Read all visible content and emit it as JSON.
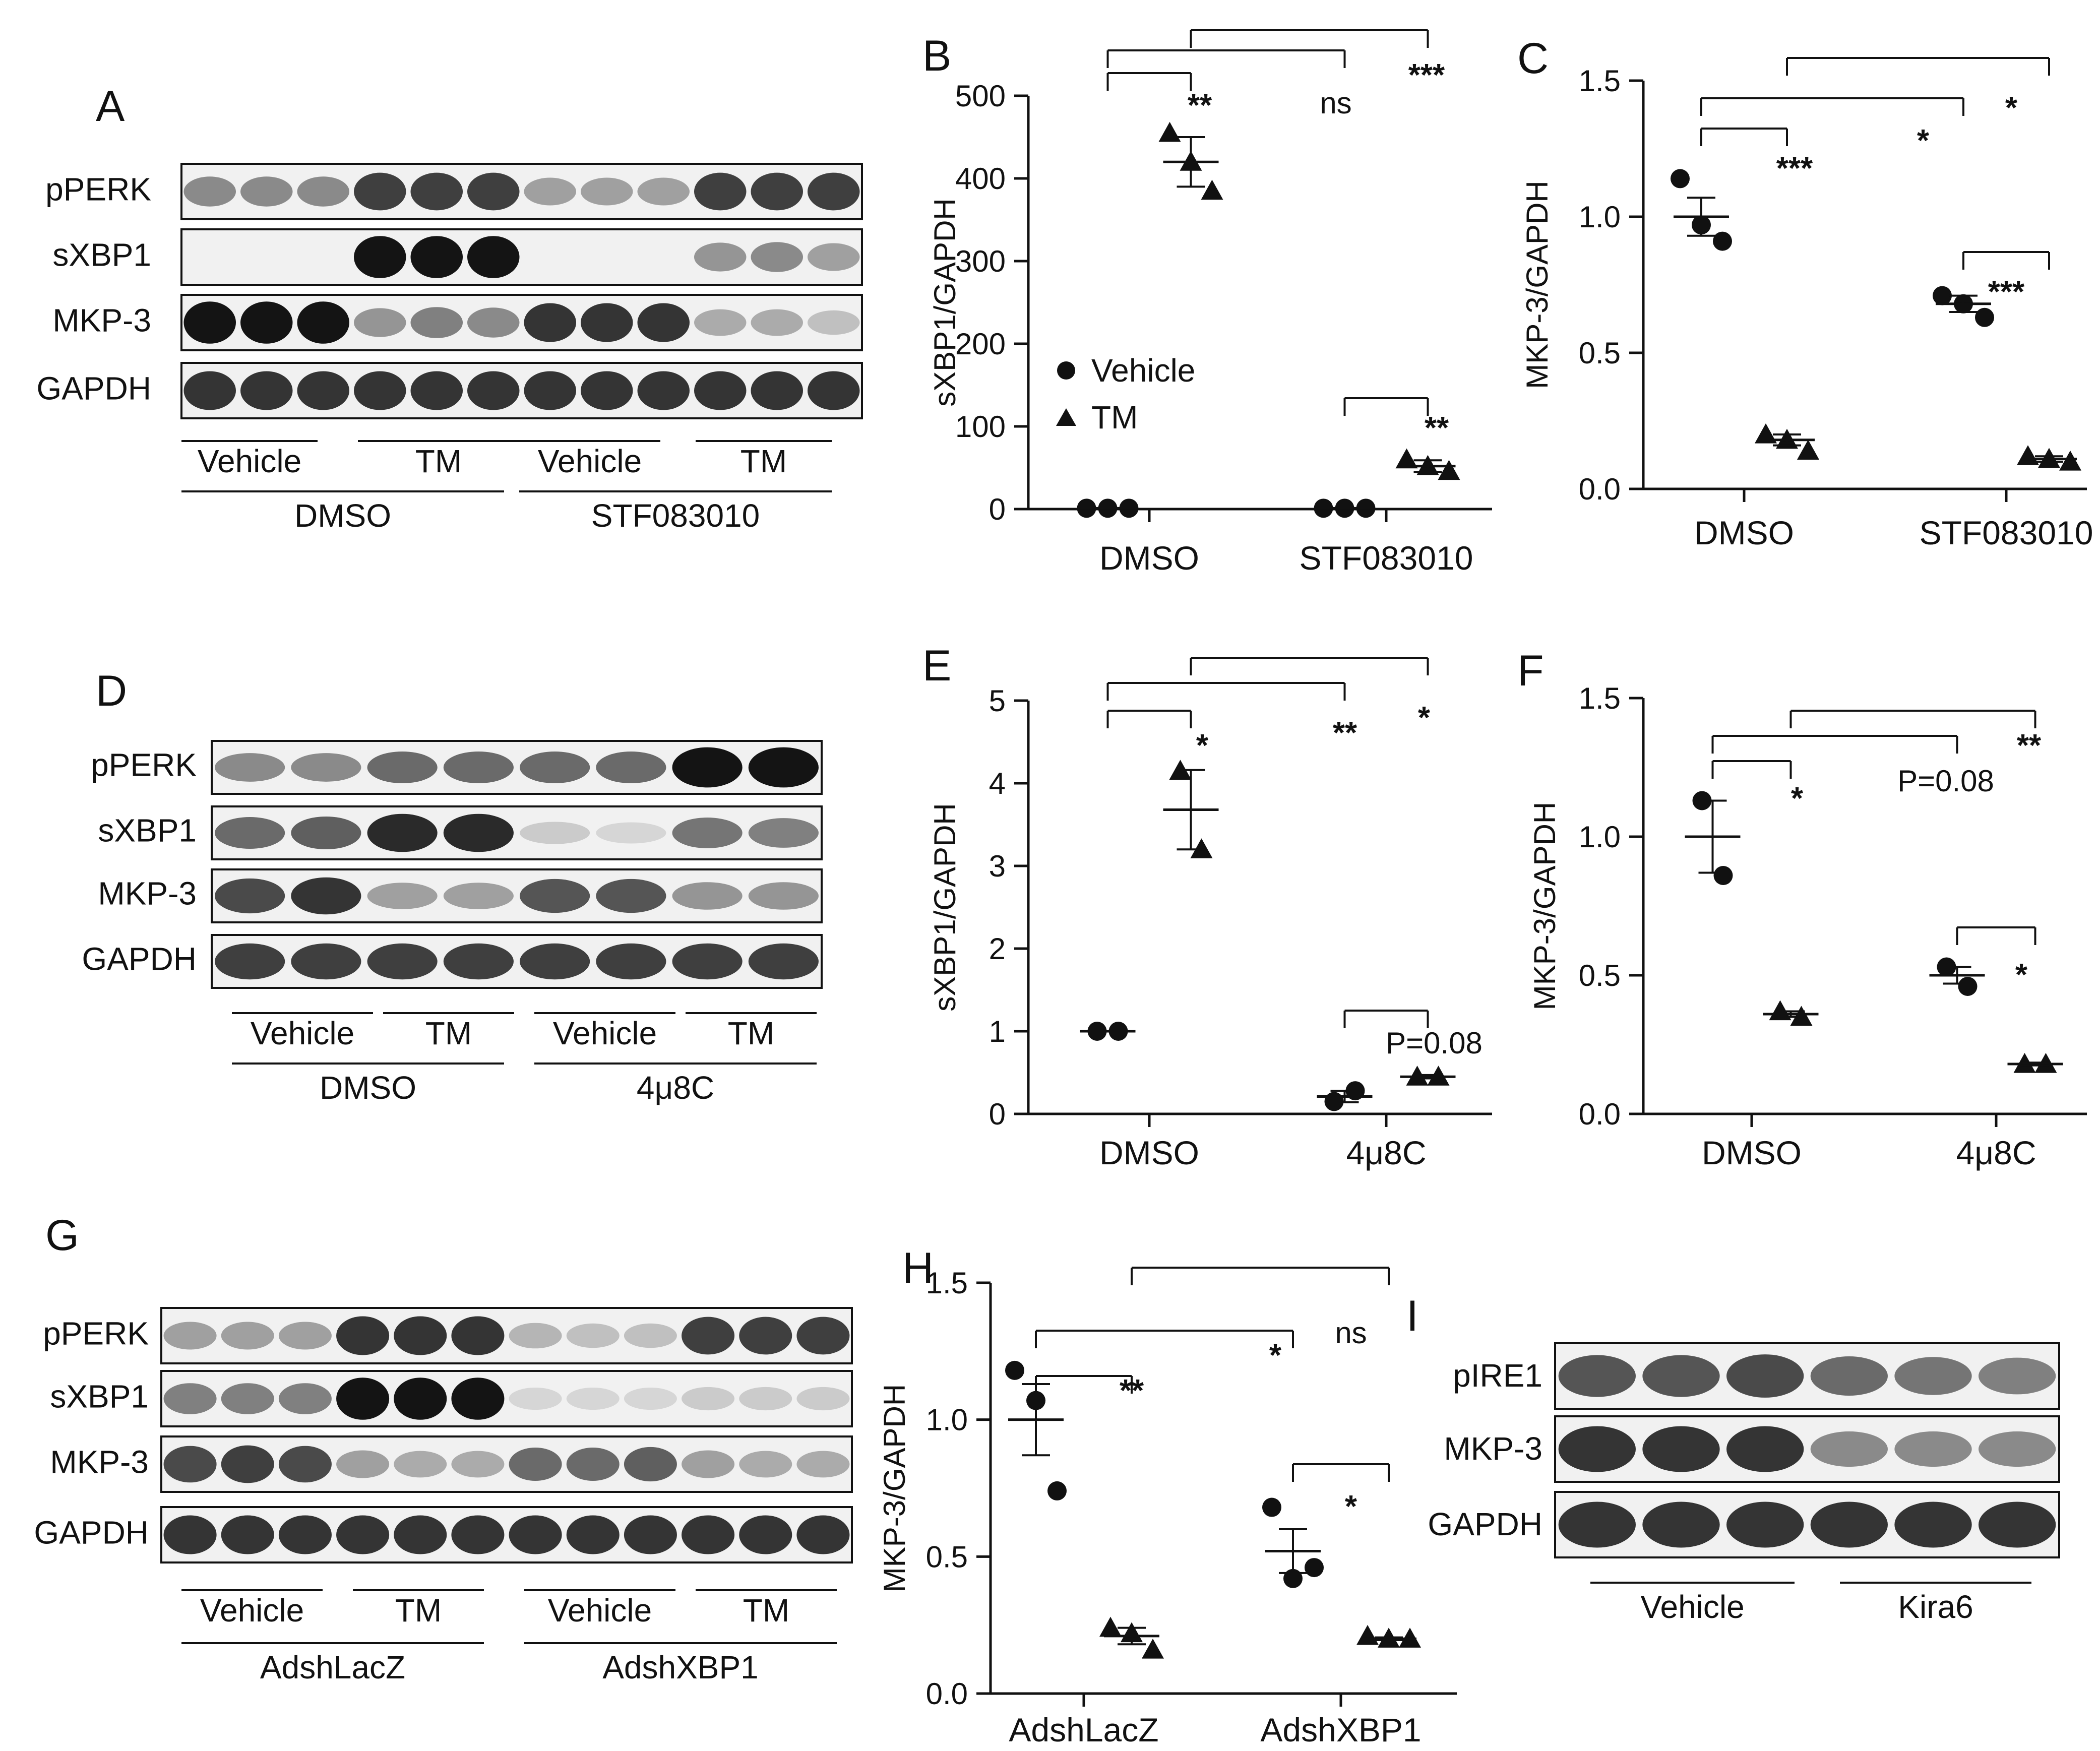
{
  "figure": {
    "panels": {
      "A": {
        "letter": "A",
        "rows": [
          "pPERK",
          "sXBP1",
          "MKP-3",
          "GAPDH"
        ],
        "treatments": [
          "Vehicle",
          "TM",
          "Vehicle",
          "TM"
        ],
        "groups": [
          "DMSO",
          "STF083010"
        ],
        "band_intensity": [
          [
            0.45,
            0.45,
            0.45,
            0.8,
            0.8,
            0.8,
            0.35,
            0.35,
            0.35,
            0.8,
            0.8,
            0.8
          ],
          [
            0.0,
            0.0,
            0.0,
            1.0,
            1.0,
            1.0,
            0.0,
            0.0,
            0.0,
            0.4,
            0.45,
            0.35
          ],
          [
            1.0,
            1.0,
            1.0,
            0.4,
            0.5,
            0.45,
            0.85,
            0.85,
            0.85,
            0.3,
            0.3,
            0.2
          ],
          [
            0.85,
            0.85,
            0.85,
            0.85,
            0.85,
            0.85,
            0.85,
            0.85,
            0.85,
            0.85,
            0.85,
            0.85
          ]
        ]
      },
      "D": {
        "letter": "D",
        "rows": [
          "pPERK",
          "sXBP1",
          "MKP-3",
          "GAPDH"
        ],
        "treatments": [
          "Vehicle",
          "TM",
          "Vehicle",
          "TM"
        ],
        "groups": [
          "DMSO",
          "4μ8C"
        ],
        "band_intensity": [
          [
            0.45,
            0.45,
            0.6,
            0.6,
            0.6,
            0.6,
            1.0,
            1.0
          ],
          [
            0.6,
            0.65,
            0.9,
            0.9,
            0.15,
            0.1,
            0.55,
            0.5
          ],
          [
            0.75,
            0.85,
            0.35,
            0.35,
            0.7,
            0.7,
            0.4,
            0.4
          ],
          [
            0.8,
            0.8,
            0.8,
            0.8,
            0.8,
            0.8,
            0.8,
            0.8
          ]
        ]
      },
      "G": {
        "letter": "G",
        "rows": [
          "pPERK",
          "sXBP1",
          "MKP-3",
          "GAPDH"
        ],
        "treatments": [
          "Vehicle",
          "TM",
          "Vehicle",
          "TM"
        ],
        "groups": [
          "AdshLacZ",
          "AdshXBP1"
        ],
        "band_intensity": [
          [
            0.35,
            0.35,
            0.35,
            0.85,
            0.85,
            0.85,
            0.25,
            0.2,
            0.2,
            0.8,
            0.8,
            0.8
          ],
          [
            0.5,
            0.5,
            0.5,
            1.0,
            1.0,
            1.0,
            0.1,
            0.1,
            0.1,
            0.15,
            0.15,
            0.15
          ],
          [
            0.75,
            0.8,
            0.75,
            0.35,
            0.3,
            0.3,
            0.6,
            0.6,
            0.65,
            0.35,
            0.3,
            0.3
          ],
          [
            0.85,
            0.85,
            0.85,
            0.85,
            0.85,
            0.85,
            0.85,
            0.85,
            0.85,
            0.85,
            0.85,
            0.85
          ]
        ]
      },
      "I": {
        "letter": "I",
        "rows": [
          "pIRE1",
          "MKP-3",
          "GAPDH"
        ],
        "groups": [
          "Vehicle",
          "Kira6"
        ],
        "band_intensity": [
          [
            0.7,
            0.7,
            0.75,
            0.6,
            0.55,
            0.5
          ],
          [
            0.85,
            0.85,
            0.85,
            0.45,
            0.45,
            0.45
          ],
          [
            0.85,
            0.85,
            0.85,
            0.85,
            0.85,
            0.85
          ]
        ]
      },
      "B": {
        "letter": "B",
        "legend": [
          "Vehicle",
          "TM"
        ]
      },
      "C": {
        "letter": "C"
      },
      "E": {
        "letter": "E"
      },
      "F": {
        "letter": "F"
      },
      "H": {
        "letter": "H"
      }
    }
  },
  "chart_data": [
    {
      "panel": "B",
      "type": "scatter",
      "ylabel": "sXBP1/GAPDH",
      "ylim": [
        0,
        500
      ],
      "yticks": [
        "0",
        "100",
        "200",
        "300",
        "400",
        "500"
      ],
      "categories": [
        "DMSO",
        "STF083010"
      ],
      "series": [
        {
          "name": "Vehicle",
          "marker": "circle",
          "points": [
            [
              1,
              1,
              1
            ],
            [
              1,
              1,
              1
            ]
          ],
          "mean": [
            1,
            1
          ],
          "sem": [
            0,
            0
          ]
        },
        {
          "name": "TM",
          "marker": "triangle",
          "points": [
            [
              455,
              420,
              385
            ],
            [
              60,
              52,
              46
            ]
          ],
          "mean": [
            420,
            52
          ],
          "sem": [
            30,
            7
          ]
        }
      ],
      "significance": [
        {
          "pair": "DMSO Vehicle vs DMSO TM",
          "label": "**"
        },
        {
          "pair": "DMSO Vehicle vs STF083010 Vehicle",
          "label": "ns"
        },
        {
          "pair": "DMSO TM vs STF083010 TM",
          "label": "***"
        },
        {
          "pair": "STF083010 Vehicle vs STF083010 TM",
          "label": "**"
        }
      ]
    },
    {
      "panel": "C",
      "type": "scatter",
      "ylabel": "MKP-3/GAPDH",
      "ylim": [
        0,
        1.5
      ],
      "yticks": [
        "0.0",
        "0.5",
        "1.0",
        "1.5"
      ],
      "categories": [
        "DMSO",
        "STF083010"
      ],
      "series": [
        {
          "marker": "circle",
          "points": [
            [
              1.14,
              0.97,
              0.91
            ],
            [
              0.71,
              0.68,
              0.63
            ]
          ],
          "mean": [
            1.0,
            0.68
          ],
          "sem": [
            0.07,
            0.03
          ]
        },
        {
          "marker": "triangle",
          "points": [
            [
              0.2,
              0.18,
              0.14
            ],
            [
              0.12,
              0.11,
              0.1
            ]
          ],
          "mean": [
            0.18,
            0.11
          ],
          "sem": [
            0.02,
            0.01
          ]
        }
      ],
      "significance": [
        {
          "pair": "DMSO Vehicle vs DMSO TM",
          "label": "***"
        },
        {
          "pair": "DMSO Vehicle vs STF083010 Vehicle",
          "label": "*"
        },
        {
          "pair": "DMSO TM vs STF083010 TM",
          "label": "*"
        },
        {
          "pair": "STF083010 Vehicle vs STF083010 TM",
          "label": "***"
        }
      ]
    },
    {
      "panel": "E",
      "type": "scatter",
      "ylabel": "sXBP1/GAPDH",
      "ylim": [
        0,
        5
      ],
      "yticks": [
        "0",
        "1",
        "2",
        "3",
        "4",
        "5"
      ],
      "categories": [
        "DMSO",
        "4μ8C"
      ],
      "series": [
        {
          "marker": "circle",
          "points": [
            [
              1.0,
              1.0
            ],
            [
              0.15,
              0.28
            ]
          ],
          "mean": [
            1.0,
            0.21
          ],
          "sem": [
            0,
            0.07
          ]
        },
        {
          "marker": "triangle",
          "points": [
            [
              4.15,
              3.2
            ],
            [
              0.45,
              0.45
            ]
          ],
          "mean": [
            3.68,
            0.45
          ],
          "sem": [
            0.48,
            0.02
          ]
        }
      ],
      "significance": [
        {
          "pair": "DMSO Vehicle vs DMSO TM",
          "label": "*"
        },
        {
          "pair": "DMSO Vehicle vs 4μ8C Vehicle",
          "label": "**"
        },
        {
          "pair": "DMSO TM vs 4μ8C TM",
          "label": "*"
        },
        {
          "pair": "4μ8C Vehicle vs 4μ8C TM",
          "label": "P=0.08"
        }
      ]
    },
    {
      "panel": "F",
      "type": "scatter",
      "ylabel": "MKP-3/GAPDH",
      "ylim": [
        0,
        1.5
      ],
      "yticks": [
        "0.0",
        "0.5",
        "1.0",
        "1.5"
      ],
      "categories": [
        "DMSO",
        "4μ8C"
      ],
      "series": [
        {
          "marker": "circle",
          "points": [
            [
              1.13,
              0.86
            ],
            [
              0.53,
              0.46
            ]
          ],
          "mean": [
            1.0,
            0.5
          ],
          "sem": [
            0.13,
            0.03
          ]
        },
        {
          "marker": "triangle",
          "points": [
            [
              0.37,
              0.35
            ],
            [
              0.18,
              0.18
            ]
          ],
          "mean": [
            0.36,
            0.18
          ],
          "sem": [
            0.01,
            0.005
          ]
        }
      ],
      "significance": [
        {
          "pair": "DMSO Vehicle vs DMSO TM",
          "label": "*"
        },
        {
          "pair": "DMSO Vehicle vs 4μ8C Vehicle",
          "label": "P=0.08"
        },
        {
          "pair": "DMSO TM vs 4μ8C TM",
          "label": "**"
        },
        {
          "pair": "4μ8C Vehicle vs 4μ8C TM",
          "label": "*"
        }
      ]
    },
    {
      "panel": "H",
      "type": "scatter",
      "ylabel": "MKP-3/GAPDH",
      "ylim": [
        0,
        1.5
      ],
      "yticks": [
        "0.0",
        "0.5",
        "1.0",
        "1.5"
      ],
      "categories": [
        "AdshLacZ",
        "AdshXBP1"
      ],
      "series": [
        {
          "marker": "circle",
          "points": [
            [
              1.18,
              1.07,
              0.74
            ],
            [
              0.68,
              0.42,
              0.46
            ]
          ],
          "mean": [
            1.0,
            0.52
          ],
          "sem": [
            0.13,
            0.08
          ]
        },
        {
          "marker": "triangle",
          "points": [
            [
              0.24,
              0.22,
              0.16
            ],
            [
              0.21,
              0.2,
              0.2
            ]
          ],
          "mean": [
            0.21,
            0.2
          ],
          "sem": [
            0.03,
            0.005
          ]
        }
      ],
      "significance": [
        {
          "pair": "AdshLacZ Vehicle vs AdshLacZ TM",
          "label": "**"
        },
        {
          "pair": "AdshLacZ Vehicle vs AdshXBP1 Vehicle",
          "label": "*"
        },
        {
          "pair": "AdshLacZ TM vs AdshXBP1 TM",
          "label": "ns"
        },
        {
          "pair": "AdshXBP1 Vehicle vs AdshXBP1 TM",
          "label": "*"
        }
      ]
    }
  ]
}
